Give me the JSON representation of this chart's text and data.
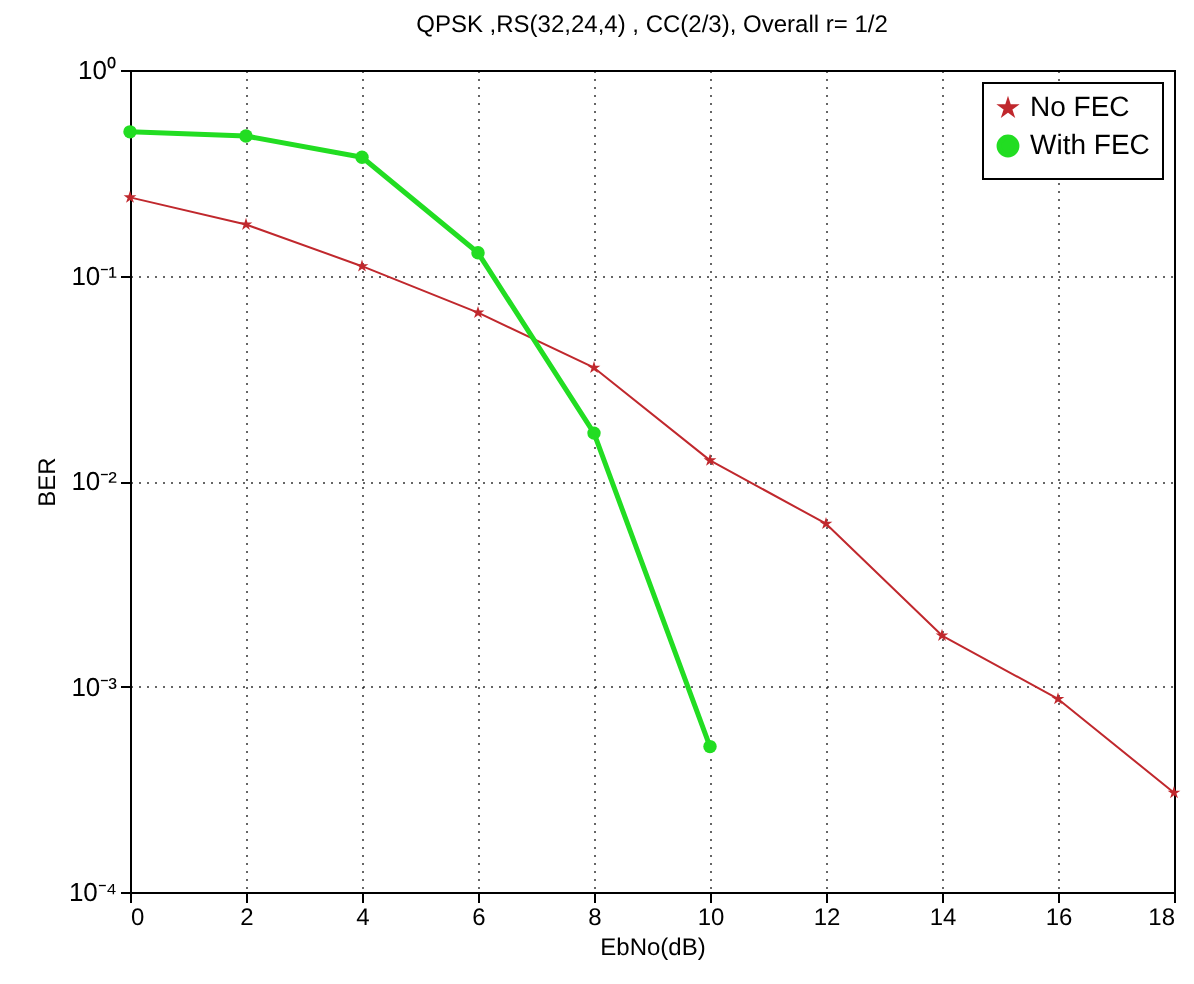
{
  "chart_data": {
    "type": "line",
    "title": "QPSK ,RS(32,24,4) , CC(2/3), Overall r= 1/2",
    "xlabel": "EbNo(dB)",
    "ylabel": "BER",
    "x": [
      0,
      2,
      4,
      6,
      8,
      10,
      12,
      14,
      16,
      18
    ],
    "series": [
      {
        "name": "No FEC",
        "color": "#c0282d",
        "marker": "star",
        "values": [
          0.24,
          0.177,
          0.111,
          0.066,
          0.0356,
          0.0126,
          0.0062,
          0.00177,
          0.00087,
          0.000304
        ]
      },
      {
        "name": "With FEC",
        "color": "#22dd22",
        "marker": "circle",
        "x": [
          0,
          2,
          4,
          6,
          8,
          10
        ],
        "values": [
          0.5,
          0.477,
          0.376,
          0.129,
          0.0171,
          0.00051
        ]
      }
    ],
    "log": "y",
    "xlim": [
      0,
      18
    ],
    "xticks": [
      0,
      2,
      4,
      6,
      8,
      10,
      12,
      14,
      16,
      18
    ],
    "ylim": [
      0.0001,
      1
    ],
    "yticks": [
      {
        "value": 0.0001,
        "label": "10⁻⁴"
      },
      {
        "value": 0.001,
        "label": "10⁻³"
      },
      {
        "value": 0.01,
        "label": "10⁻²"
      },
      {
        "value": 0.1,
        "label": "10⁻¹"
      },
      {
        "value": 1,
        "label": "10⁰"
      }
    ],
    "grid": true,
    "legend": "top right",
    "line_style": "solid"
  }
}
